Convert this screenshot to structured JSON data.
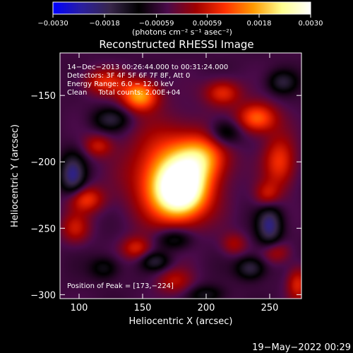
{
  "chart_data": {
    "type": "heatmap",
    "title": "Reconstructed RHESSI Image",
    "xlabel": "Heliocentric X (arcsec)",
    "ylabel": "Heliocentric Y (arcsec)",
    "xlim": [
      85,
      275
    ],
    "ylim": [
      -303,
      -118
    ],
    "x_ticks": [
      100,
      150,
      200,
      250
    ],
    "x_tick_labels": [
      "100",
      "150",
      "200",
      "250"
    ],
    "y_ticks": [
      -300,
      -250,
      -200,
      -150
    ],
    "y_tick_labels": [
      "−300",
      "−250",
      "−200",
      "−150"
    ],
    "colorbar": {
      "range": [
        -0.003,
        0.003
      ],
      "tick_values": [
        -0.003,
        -0.0018,
        -0.00059,
        0.00059,
        0.0018,
        0.003
      ],
      "tick_labels": [
        "−0.0030",
        "−0.0018",
        "−0.00059",
        "0.00059",
        "0.0018",
        "0.0030"
      ],
      "unit_label": "(photons cm⁻² s⁻¹ asec⁻²)",
      "colors": [
        "#0000ff",
        "#2a1fa0",
        "#38264a",
        "#000000",
        "#4a0a4a",
        "#a00000",
        "#ff3000",
        "#ff9a00",
        "#ffff90",
        "#ffffff"
      ]
    },
    "info_lines": [
      "14−Dec−2013 00:26:44.000 to 00:31:24.000",
      "Detectors: 3F 4F 5F 6F 7F 8F, Att 0",
      "Energy Range: 6.0 − 12.0 keV",
      "Clean     Total counts: 2.00E+04"
    ],
    "peak_label": "Position of Peak = [173,−224]",
    "peak": [
      173,
      -224
    ],
    "sources": [
      {
        "x": 180,
        "y": -222,
        "value": 0.003,
        "sx": 14,
        "sy": 14
      },
      {
        "x": 172,
        "y": -210,
        "value": 0.002,
        "sx": 22,
        "sy": 24
      },
      {
        "x": 197,
        "y": -197,
        "value": 0.0016,
        "sx": 14,
        "sy": 12
      },
      {
        "x": 148,
        "y": -150,
        "value": 0.0022,
        "sx": 10,
        "sy": 8
      },
      {
        "x": 120,
        "y": -140,
        "value": 0.0012,
        "sx": 12,
        "sy": 7
      },
      {
        "x": 213,
        "y": -148,
        "value": 0.0013,
        "sx": 10,
        "sy": 7
      },
      {
        "x": 240,
        "y": -167,
        "value": 0.0018,
        "sx": 11,
        "sy": 8
      },
      {
        "x": 258,
        "y": -200,
        "value": 0.0014,
        "sx": 9,
        "sy": 14
      },
      {
        "x": 248,
        "y": -225,
        "value": 0.001,
        "sx": 7,
        "sy": 7
      },
      {
        "x": 115,
        "y": -188,
        "value": 0.001,
        "sx": 8,
        "sy": 6
      },
      {
        "x": 105,
        "y": -228,
        "value": 0.0014,
        "sx": 10,
        "sy": 7
      },
      {
        "x": 97,
        "y": -250,
        "value": 0.001,
        "sx": 8,
        "sy": 8
      },
      {
        "x": 145,
        "y": -265,
        "value": 0.0011,
        "sx": 8,
        "sy": 6
      },
      {
        "x": 222,
        "y": -262,
        "value": 0.0008,
        "sx": 7,
        "sy": 6
      },
      {
        "x": 255,
        "y": -268,
        "value": 0.0009,
        "sx": 8,
        "sy": 6
      },
      {
        "x": 175,
        "y": -290,
        "value": 0.0009,
        "sx": 10,
        "sy": 7
      },
      {
        "x": 272,
        "y": -292,
        "value": 0.0012,
        "sx": 6,
        "sy": 9
      },
      {
        "x": 95,
        "y": -210,
        "value": -0.0016,
        "sx": 7,
        "sy": 11
      },
      {
        "x": 125,
        "y": -168,
        "value": -0.001,
        "sx": 10,
        "sy": 6
      },
      {
        "x": 215,
        "y": -178,
        "value": -0.001,
        "sx": 9,
        "sy": 7
      },
      {
        "x": 260,
        "y": -140,
        "value": -0.001,
        "sx": 8,
        "sy": 6
      },
      {
        "x": 250,
        "y": -248,
        "value": -0.0016,
        "sx": 7,
        "sy": 11
      },
      {
        "x": 235,
        "y": -280,
        "value": -0.0012,
        "sx": 8,
        "sy": 6
      },
      {
        "x": 175,
        "y": -258,
        "value": -0.001,
        "sx": 10,
        "sy": 6
      },
      {
        "x": 160,
        "y": -275,
        "value": -0.001,
        "sx": 8,
        "sy": 5
      },
      {
        "x": 120,
        "y": -280,
        "value": -0.0008,
        "sx": 8,
        "sy": 6
      },
      {
        "x": 200,
        "y": -300,
        "value": -0.0008,
        "sx": 10,
        "sy": 5
      }
    ]
  },
  "footer": {
    "timestamp": "19−May−2022 00:29"
  }
}
